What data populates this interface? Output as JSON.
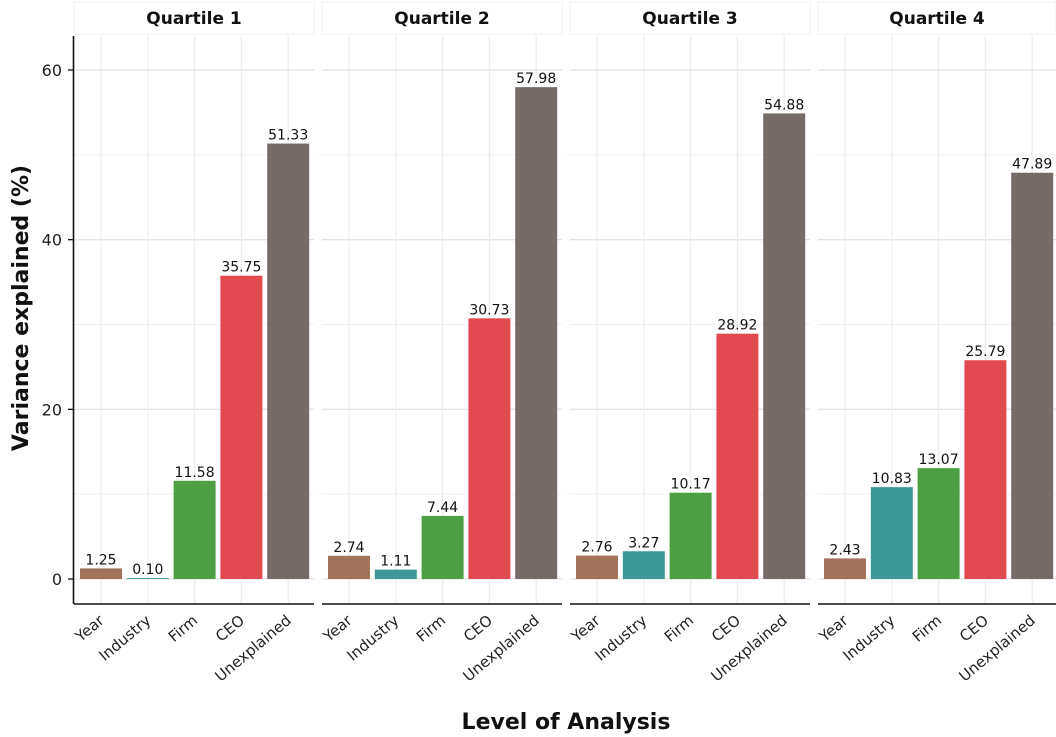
{
  "chart_data": {
    "type": "bar",
    "xlabel": "Level of Analysis",
    "ylabel": "Variance explained (%)",
    "ylim": [
      0,
      60
    ],
    "yticks": [
      0,
      20,
      40,
      60
    ],
    "grid": true,
    "categories": [
      "Year",
      "Industry",
      "Firm",
      "CEO",
      "Unexplained"
    ],
    "colors": {
      "Year": "#a0735a",
      "Industry": "#3e9896",
      "Firm": "#4e9e43",
      "CEO": "#e24a52",
      "Unexplained": "#776b67"
    },
    "panels": [
      {
        "name": "Quartile 1",
        "values": [
          1.25,
          0.1,
          11.58,
          35.75,
          51.33
        ],
        "labels": [
          "1.25",
          "0.10",
          "11.58",
          "35.75",
          "51.33"
        ]
      },
      {
        "name": "Quartile 2",
        "values": [
          2.74,
          1.11,
          7.44,
          30.73,
          57.98
        ],
        "labels": [
          "2.74",
          "1.11",
          "7.44",
          "30.73",
          "57.98"
        ]
      },
      {
        "name": "Quartile 3",
        "values": [
          2.76,
          3.27,
          10.17,
          28.92,
          54.88
        ],
        "labels": [
          "2.76",
          "3.27",
          "10.17",
          "28.92",
          "54.88"
        ]
      },
      {
        "name": "Quartile 4",
        "values": [
          2.43,
          10.83,
          13.07,
          25.79,
          47.89
        ],
        "labels": [
          "2.43",
          "10.83",
          "13.07",
          "25.79",
          "47.89"
        ]
      }
    ]
  }
}
